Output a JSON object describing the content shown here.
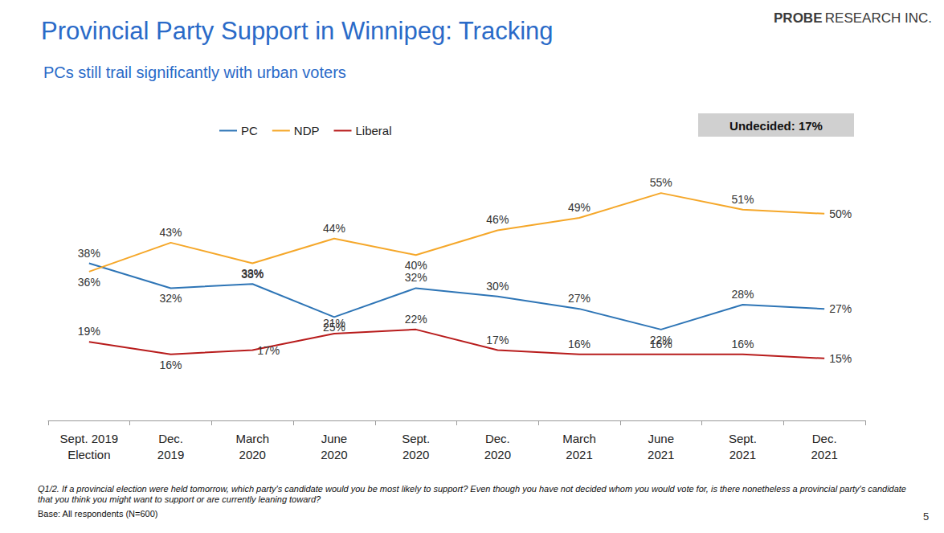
{
  "chart_data": {
    "type": "line",
    "title": "Provincial Party Support in Winnipeg: Tracking",
    "subtitle": "PCs still trail significantly with urban voters",
    "logo": "PROBE RESEARCH INC.",
    "annotations": [
      "Undecided: 17%"
    ],
    "note": "Q1/2. If a provincial election were held tomorrow, which party's candidate would you be most likely to support? Even though you have not decided whom you would vote for, is there nonetheless a provincial party's candidate that you think you might want to support or are currently leaning toward?",
    "base": "Base: All respondents (N=600)",
    "page_number": 5,
    "categories": [
      "Sept. 2019\nElection",
      "Dec.\n2019",
      "March\n2020",
      "June\n2020",
      "Sept.\n2020",
      "Dec.\n2020",
      "March\n2021",
      "June\n2021",
      "Sept.\n2021",
      "Dec.\n2021"
    ],
    "series": [
      {
        "name": "PC",
        "color": "#2e75b6",
        "values": [
          38,
          32,
          33,
          25,
          32,
          30,
          27,
          22,
          28,
          27
        ],
        "value_labels": [
          "38%",
          "32%",
          "33%",
          "25%",
          "32%",
          "30%",
          "27%",
          "22%",
          "28%",
          "27%"
        ]
      },
      {
        "name": "NDP",
        "color": "#f5a729",
        "values": [
          36,
          43,
          38,
          44,
          40,
          46,
          49,
          55,
          51,
          50
        ],
        "value_labels": [
          "36%",
          "43%",
          "38%",
          "44%",
          "40%",
          "46%",
          "49%",
          "55%",
          "51%",
          "50%"
        ]
      },
      {
        "name": "Liberal",
        "color": "#b81c1c",
        "values": [
          19,
          16,
          17,
          21,
          22,
          17,
          16,
          16,
          16,
          15
        ],
        "value_labels": [
          "19%",
          "16%",
          "17%",
          "21%",
          "22%",
          "17%",
          "16%",
          "16%",
          "16%",
          "15%"
        ]
      }
    ],
    "ylim": [
      0,
      70
    ],
    "yticks": [
      0,
      70
    ],
    "grid": false,
    "legend": "top",
    "data_labels": true,
    "tick_labels": "x"
  }
}
